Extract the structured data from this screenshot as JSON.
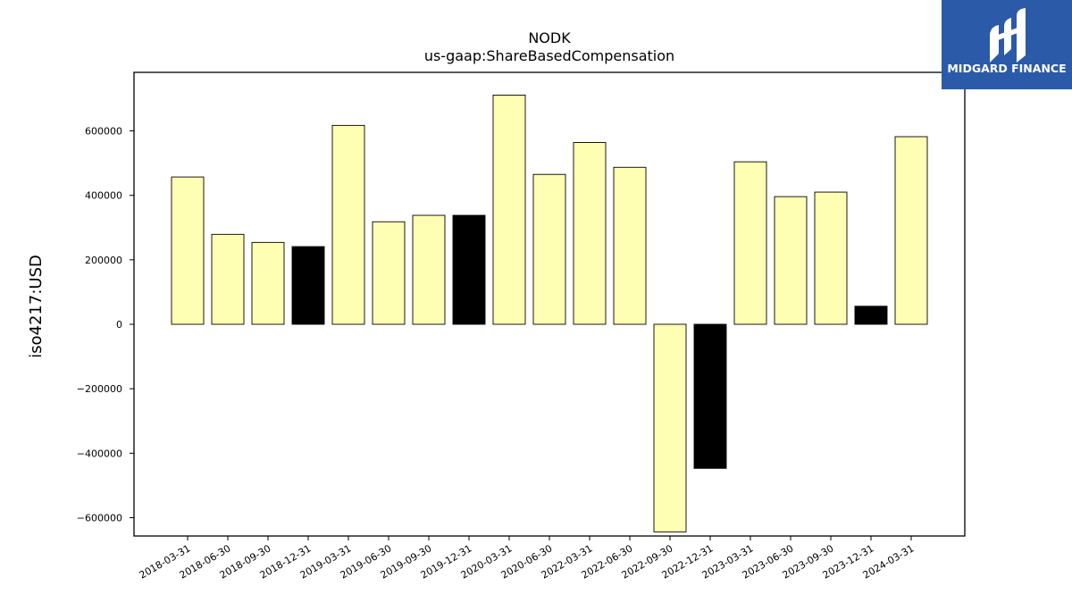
{
  "logo": {
    "text": "MIDGARD FINANCE",
    "background": "#2a5aa8"
  },
  "chart_data": {
    "type": "bar",
    "title": "NODK",
    "subtitle": "us-gaap:ShareBasedCompensation",
    "xlabel": "",
    "ylabel": "iso4217:USD",
    "ylim": [
      -650000,
      780000
    ],
    "yticks": [
      -600000,
      -400000,
      -200000,
      0,
      200000,
      400000,
      600000
    ],
    "grid": false,
    "categories": [
      "2018-03-31",
      "2018-06-30",
      "2018-09-30",
      "2018-12-31",
      "2019-03-31",
      "2019-06-30",
      "2019-09-30",
      "2019-12-31",
      "2020-03-31",
      "2020-06-30",
      "2022-03-31",
      "2022-06-30",
      "2022-09-30",
      "2022-12-31",
      "2023-03-31",
      "2023-06-30",
      "2023-09-30",
      "2023-12-31",
      "2024-03-31"
    ],
    "values": [
      457000,
      279000,
      254000,
      241000,
      617000,
      318000,
      338000,
      338000,
      711000,
      465000,
      564000,
      487000,
      -644000,
      -447000,
      504000,
      396000,
      410000,
      56000,
      582000
    ],
    "bar_colors": [
      "#ffffb3",
      "#ffffb3",
      "#ffffb3",
      "#000000",
      "#ffffb3",
      "#ffffb3",
      "#ffffb3",
      "#000000",
      "#ffffb3",
      "#ffffb3",
      "#ffffb3",
      "#ffffb3",
      "#ffffb3",
      "#000000",
      "#ffffb3",
      "#ffffb3",
      "#ffffb3",
      "#000000",
      "#ffffb3"
    ]
  }
}
